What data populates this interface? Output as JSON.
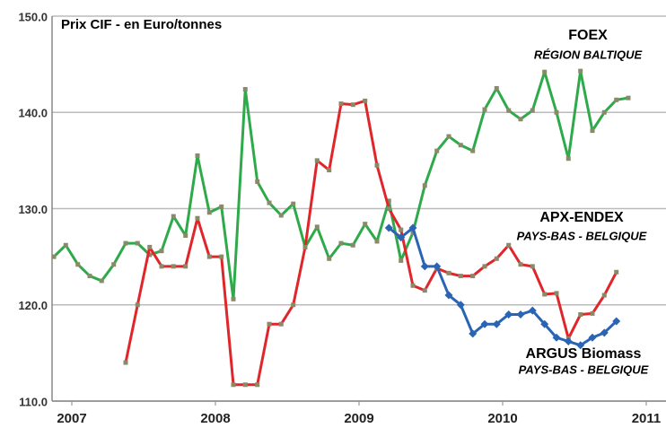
{
  "chart_data": {
    "type": "line",
    "title": "Prix CIF - en Euro/tonnes",
    "x": [
      2006.875,
      2006.958,
      2007.042,
      2007.125,
      2007.208,
      2007.292,
      2007.375,
      2007.458,
      2007.542,
      2007.625,
      2007.708,
      2007.792,
      2007.875,
      2007.958,
      2008.042,
      2008.125,
      2008.208,
      2008.292,
      2008.375,
      2008.458,
      2008.542,
      2008.625,
      2008.708,
      2008.792,
      2008.875,
      2008.958,
      2009.042,
      2009.125,
      2009.208,
      2009.292,
      2009.375,
      2009.458,
      2009.542,
      2009.625,
      2009.708,
      2009.792,
      2009.875,
      2009.958,
      2010.042,
      2010.125,
      2010.208,
      2010.292,
      2010.375,
      2010.458,
      2010.542,
      2010.625,
      2010.708,
      2010.792,
      2010.875
    ],
    "series": [
      {
        "name": "FOEX",
        "color": "#2eaa4a",
        "marker": "square",
        "values": [
          125,
          126.2,
          124.2,
          123,
          122.5,
          124.2,
          126.4,
          126.4,
          125.2,
          125.6,
          129.2,
          127.2,
          135.5,
          129.6,
          130.2,
          120.6,
          142.4,
          132.8,
          130.6,
          129.3,
          130.5,
          126,
          128.1,
          124.8,
          126.4,
          126.2,
          128.4,
          126.6,
          130.8,
          124.6,
          127.5,
          132.4,
          136,
          137.5,
          136.6,
          136,
          140.3,
          142.5,
          140.2,
          139.3,
          140.2,
          144.2,
          140,
          135.2,
          144.3,
          138.1,
          140,
          141.3,
          141.5
        ]
      },
      {
        "name": "APX-ENDEX",
        "color": "#e0262a",
        "marker": "square",
        "values": [
          null,
          null,
          null,
          null,
          null,
          null,
          114,
          120,
          126,
          124,
          124,
          124,
          129,
          125,
          125,
          111.7,
          111.7,
          111.7,
          118,
          118,
          120,
          126,
          135,
          134,
          140.9,
          140.8,
          141.2,
          134.5,
          130,
          127.8,
          122,
          121.5,
          123.8,
          123.3,
          123,
          123,
          124,
          124.8,
          126.2,
          124.2,
          124,
          121.1,
          121.2,
          116.5,
          119,
          119.1,
          121,
          123.4,
          null
        ]
      },
      {
        "name": "ARGUS Biomass",
        "color": "#2a64b4",
        "marker": "diamond",
        "values": [
          null,
          null,
          null,
          null,
          null,
          null,
          null,
          null,
          null,
          null,
          null,
          null,
          null,
          null,
          null,
          null,
          null,
          null,
          null,
          null,
          null,
          null,
          null,
          null,
          null,
          null,
          null,
          null,
          128,
          127,
          128,
          124,
          124,
          121,
          120,
          117,
          118,
          118,
          119,
          119,
          119.4,
          118,
          116.6,
          116.2,
          115.8,
          116.6,
          117.1,
          118.3,
          null
        ]
      }
    ],
    "annotations": [
      "RÉGION BALTIQUE",
      "PAYS-BAS - BELGIQUE",
      "PAYS-BAS - BELGIQUE"
    ],
    "xlim": [
      2006.8625,
      2011.1375
    ],
    "xticks": [
      2007,
      2008,
      2009,
      2010,
      2011
    ],
    "ylim": [
      110,
      150
    ],
    "yticks": [
      {
        "value": 110,
        "label": "110.0"
      },
      {
        "value": 120,
        "label": "120.0"
      },
      {
        "value": 130,
        "label": "130.0"
      },
      {
        "value": 140,
        "label": "140.0"
      },
      {
        "value": 150,
        "label": "150.0"
      }
    ],
    "grid": true
  }
}
